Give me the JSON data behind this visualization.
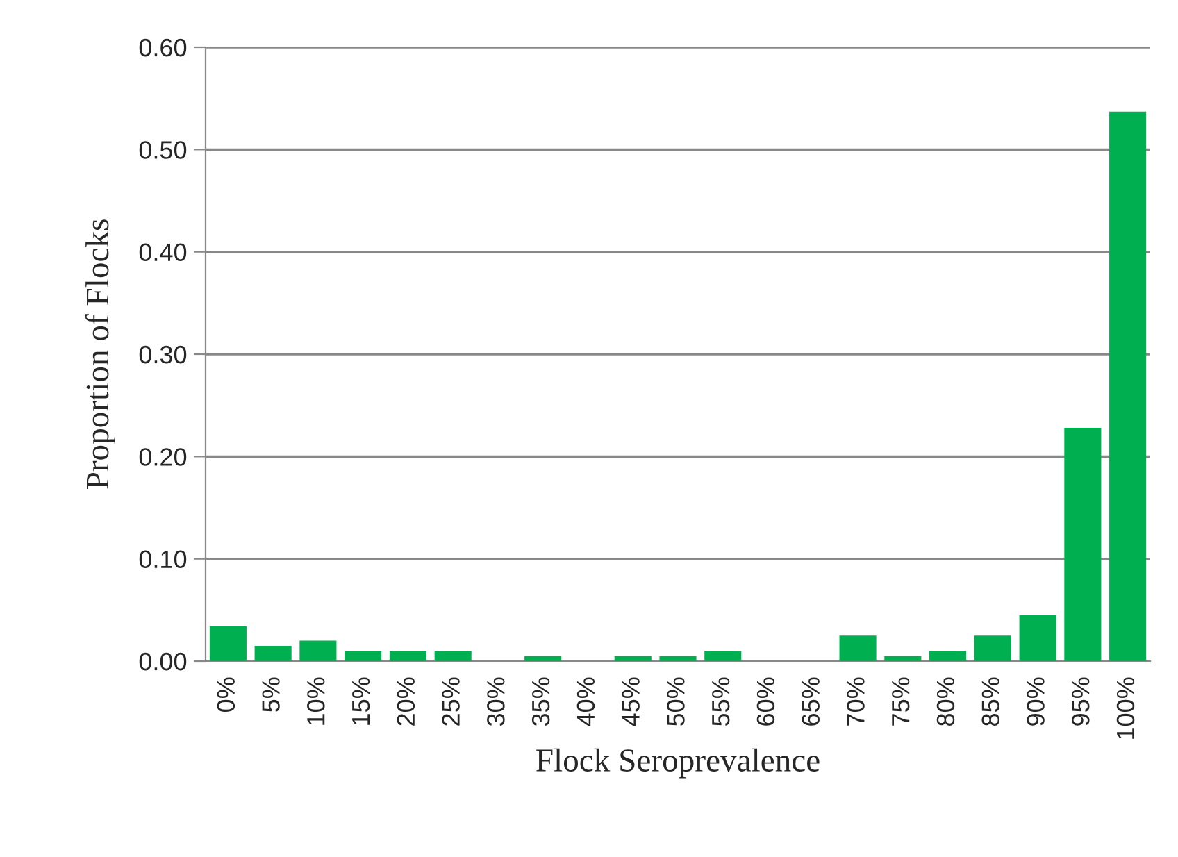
{
  "chart_data": {
    "type": "bar",
    "xlabel": "Flock Seroprevalence",
    "ylabel": "Proportion of Flocks",
    "categories": [
      "0%",
      "5%",
      "10%",
      "15%",
      "20%",
      "25%",
      "30%",
      "35%",
      "40%",
      "45%",
      "50%",
      "55%",
      "60%",
      "65%",
      "70%",
      "75%",
      "80%",
      "85%",
      "90%",
      "95%",
      "100%"
    ],
    "values": [
      0.034,
      0.015,
      0.02,
      0.01,
      0.01,
      0.01,
      0,
      0.005,
      0,
      0.005,
      0.005,
      0.01,
      0,
      0,
      0.025,
      0.005,
      0.01,
      0.025,
      0.045,
      0.228,
      0.537
    ],
    "color": "#00b050",
    "ylim": [
      0,
      0.6
    ],
    "yticks": [
      {
        "value": 0,
        "label": "0.00"
      },
      {
        "value": 0.1,
        "label": "0.10"
      },
      {
        "value": 0.2,
        "label": "0.20"
      },
      {
        "value": 0.3,
        "label": "0.30"
      },
      {
        "value": 0.4,
        "label": "0.40"
      },
      {
        "value": 0.5,
        "label": "0.50"
      },
      {
        "value": 0.6,
        "label": "0.60"
      }
    ],
    "grid": "y"
  }
}
